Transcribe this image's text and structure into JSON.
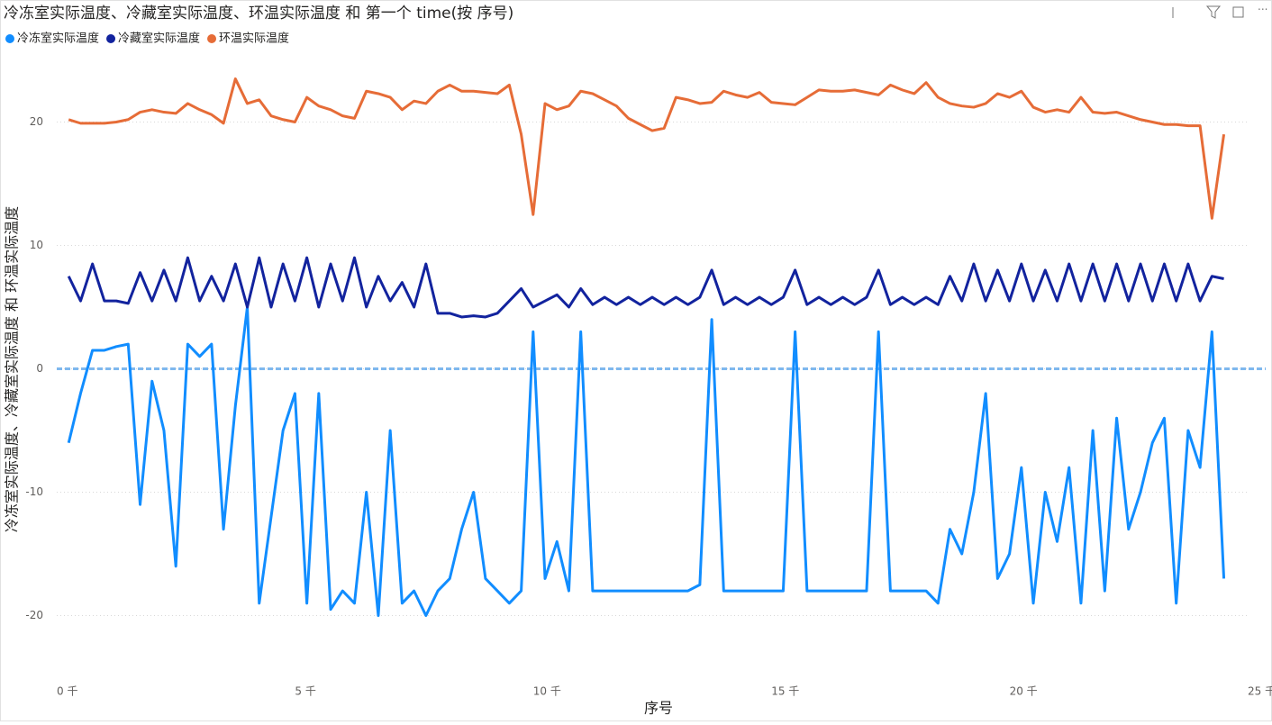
{
  "chart_data": {
    "type": "line",
    "title": "冷冻室实际温度、冷藏室实际温度、环温实际温度 和 第一个 time(按 序号)",
    "x_label": "序号",
    "y_label": "冷冻室实际温度、冷藏室实际温度 和 环温实际温度",
    "x": [
      250,
      500,
      750,
      1000,
      1250,
      1500,
      1750,
      2000,
      2250,
      2500,
      2750,
      3000,
      3250,
      3500,
      3750,
      4000,
      4250,
      4500,
      4750,
      5000,
      5250,
      5500,
      5750,
      6000,
      6250,
      6500,
      6750,
      7000,
      7250,
      7500,
      7750,
      8000,
      8250,
      8500,
      8750,
      9000,
      9250,
      9500,
      9750,
      10000,
      10250,
      10500,
      10750,
      11000,
      11250,
      11500,
      11750,
      12000,
      12250,
      12500,
      12750,
      13000,
      13250,
      13500,
      13750,
      14000,
      14250,
      14500,
      14750,
      15000,
      15250,
      15500,
      15750,
      16000,
      16250,
      16500,
      16750,
      17000,
      17250,
      17500,
      17750,
      18000,
      18250,
      18500,
      18750,
      19000,
      19250,
      19500,
      19750,
      20000,
      20250,
      20500,
      20750,
      21000,
      21250,
      21500,
      21750,
      22000,
      22250,
      22500,
      22750,
      23000,
      23250,
      23500,
      23750,
      24000,
      24250,
      24500
    ],
    "series": [
      {
        "name": "冷冻室实际温度",
        "color": "#118dff",
        "values": [
          -6,
          -2,
          1.5,
          1.5,
          1.8,
          2,
          -11,
          -1,
          -5,
          -16,
          2,
          1,
          2,
          -13,
          -3,
          5,
          -19,
          -12,
          -5,
          -2,
          -19,
          -2,
          -19.5,
          -18,
          -19,
          -10,
          -20,
          -5,
          -19,
          -18,
          -20,
          -18,
          -17,
          -13,
          -10,
          -17,
          -18,
          -19,
          -18,
          3,
          -17,
          -14,
          -18,
          3,
          -18,
          -18,
          -18,
          -18,
          -18,
          -18,
          -18,
          -18,
          -18,
          -17.5,
          4,
          -18,
          -18,
          -18,
          -18,
          -18,
          -18,
          3,
          -18,
          -18,
          -18,
          -18,
          -18,
          -18,
          3,
          -18,
          -18,
          -18,
          -18,
          -19,
          -13,
          -15,
          -10,
          -2,
          -17,
          -15,
          -8,
          -19,
          -10,
          -14,
          -8,
          -19,
          -5,
          -18,
          -4,
          -13,
          -10,
          -6,
          -4,
          -19,
          -5,
          -8,
          3,
          -17
        ]
      },
      {
        "name": "冷藏室实际温度",
        "color": "#12239e",
        "values": [
          7.5,
          5.5,
          8.5,
          5.5,
          5.5,
          5.3,
          7.8,
          5.5,
          8,
          5.5,
          9,
          5.5,
          7.5,
          5.5,
          8.5,
          5,
          9,
          5,
          8.5,
          5.5,
          9,
          5,
          8.5,
          5.5,
          9,
          5,
          7.5,
          5.5,
          7,
          5,
          8.5,
          4.5,
          4.5,
          4.2,
          4.3,
          4.2,
          4.5,
          5.5,
          6.5,
          5,
          5.5,
          6,
          5,
          6.5,
          5.2,
          5.8,
          5.2,
          5.8,
          5.2,
          5.8,
          5.2,
          5.8,
          5.2,
          5.8,
          8,
          5.2,
          5.8,
          5.2,
          5.8,
          5.2,
          5.8,
          8,
          5.2,
          5.8,
          5.2,
          5.8,
          5.2,
          5.8,
          8,
          5.2,
          5.8,
          5.2,
          5.8,
          5.2,
          7.5,
          5.5,
          8.5,
          5.5,
          8,
          5.5,
          8.5,
          5.5,
          8,
          5.5,
          8.5,
          5.5,
          8.5,
          5.5,
          8.5,
          5.5,
          8.5,
          5.5,
          8.5,
          5.5,
          8.5,
          5.5,
          7.5,
          7.3
        ]
      },
      {
        "name": "环温实际温度",
        "color": "#e66c37",
        "values": [
          20.2,
          19.9,
          19.9,
          19.9,
          20.0,
          20.2,
          20.8,
          21.0,
          20.8,
          20.7,
          21.5,
          21.0,
          20.6,
          19.9,
          23.5,
          21.5,
          21.8,
          20.5,
          20.2,
          20.0,
          22.0,
          21.3,
          21.0,
          20.5,
          20.3,
          22.5,
          22.3,
          22.0,
          21.0,
          21.7,
          21.5,
          22.5,
          23.0,
          22.5,
          22.5,
          22.4,
          22.3,
          23.0,
          19.0,
          12.5,
          21.5,
          21.0,
          21.3,
          22.5,
          22.3,
          21.8,
          21.3,
          20.3,
          19.8,
          19.3,
          19.5,
          22.0,
          21.8,
          21.5,
          21.6,
          22.5,
          22.2,
          22.0,
          22.4,
          21.6,
          21.5,
          21.4,
          22.0,
          22.6,
          22.5,
          22.5,
          22.6,
          22.4,
          22.2,
          23.0,
          22.6,
          22.3,
          23.2,
          22.0,
          21.5,
          21.3,
          21.2,
          21.5,
          22.3,
          22.0,
          22.5,
          21.2,
          20.8,
          21.0,
          20.8,
          22.0,
          20.8,
          20.7,
          20.8,
          20.5,
          20.2,
          20.0,
          19.8,
          19.8,
          19.7,
          19.7,
          12.2,
          19.0
        ]
      }
    ],
    "xlim": [
      0,
      25000
    ],
    "xticks": [
      {
        "value": 0,
        "label": "0 千"
      },
      {
        "value": 5000,
        "label": "5 千"
      },
      {
        "value": 10000,
        "label": "10 千"
      },
      {
        "value": 15000,
        "label": "15 千"
      },
      {
        "value": 20000,
        "label": "20 千"
      },
      {
        "value": 25000,
        "label": "25 千"
      }
    ],
    "ylim": [
      -25,
      25
    ],
    "yticks": [
      -20,
      -10,
      0,
      10,
      20
    ],
    "grid": true,
    "zero_line": true,
    "legend": "top-left"
  }
}
